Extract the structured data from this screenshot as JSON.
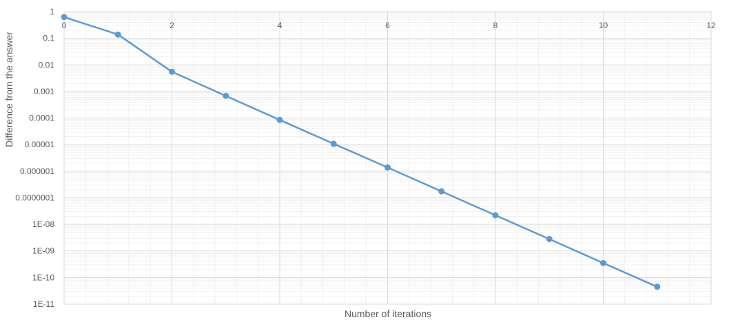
{
  "chart_data": {
    "type": "line",
    "title": "",
    "xlabel": "Number of iterations",
    "ylabel": "Difference from the answer",
    "xlim": [
      0,
      12
    ],
    "x_ticks": [
      0,
      2,
      4,
      6,
      8,
      10,
      12
    ],
    "y_scale": "log",
    "ylim": [
      1e-11,
      1
    ],
    "y_tick_labels": [
      "1",
      "0.1",
      "0.01",
      "0.001",
      "0.0001",
      "0.00001",
      "0.000001",
      "0.0000001",
      "1E-08",
      "1E-09",
      "1E-10",
      "1E-11"
    ],
    "grid": true,
    "minor_grid": true,
    "series": [
      {
        "color": "#5B9BD5",
        "x": [
          0,
          1,
          2,
          3,
          4,
          5,
          6,
          7,
          8,
          9,
          10,
          11
        ],
        "y": [
          0.63,
          0.138,
          0.0055,
          0.00068,
          8.5e-05,
          1.07e-05,
          1.38e-06,
          1.75e-07,
          2.2e-08,
          2.8e-09,
          3.5e-10,
          4.5e-11
        ]
      }
    ]
  }
}
